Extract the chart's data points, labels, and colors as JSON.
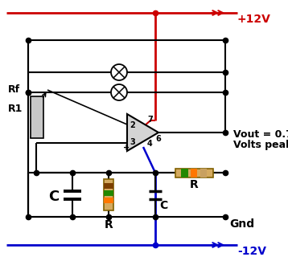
{
  "bg_color": "#ffffff",
  "line_color": "#000000",
  "red_color": "#cc0000",
  "blue_color": "#0000cc",
  "vout_label1": "Vout = 0.7",
  "vout_label2": "Volts peak",
  "gnd_label": "Gnd",
  "plus12_label": "+12V",
  "minus12_label": "-12V",
  "rf_label": "Rf",
  "r1_label": "R1",
  "c_label1": "C",
  "c_label2": "C",
  "r_label1": "R",
  "r_label2": "R",
  "opamp_pin2": "2",
  "opamp_pin3": "3",
  "opamp_pin4": "4",
  "opamp_pin6": "6",
  "opamp_pin7": "7",
  "plus_sign": "+",
  "figsize": [
    3.58,
    3.25
  ],
  "dpi": 100
}
